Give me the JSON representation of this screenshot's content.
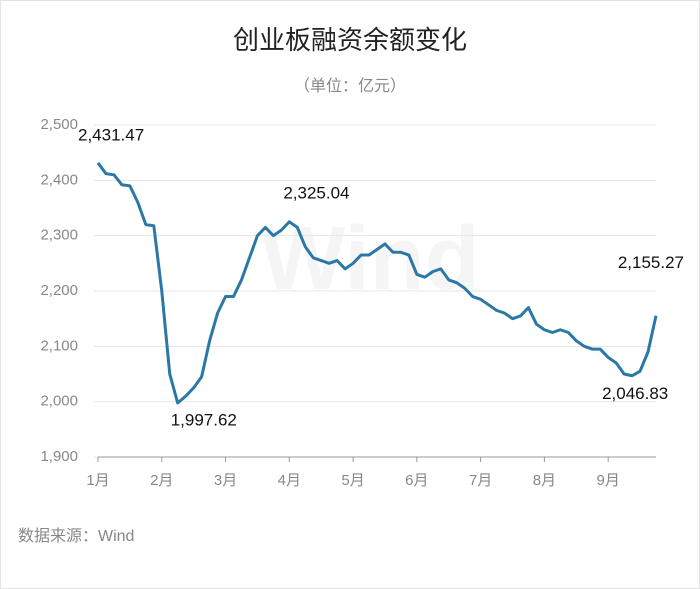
{
  "chart_data": {
    "type": "line",
    "title": "创业板融资余额变化",
    "subtitle": "（单位：亿元）",
    "source": "数据来源：Wind",
    "watermark": "Wind",
    "categories": [
      "1月",
      null,
      null,
      null,
      null,
      null,
      null,
      null,
      "2月",
      null,
      null,
      null,
      null,
      null,
      null,
      null,
      "3月",
      null,
      null,
      null,
      null,
      null,
      null,
      null,
      "4月",
      null,
      null,
      null,
      null,
      null,
      null,
      null,
      "5月",
      null,
      null,
      null,
      null,
      null,
      null,
      null,
      "6月",
      null,
      null,
      null,
      null,
      null,
      null,
      null,
      "7月",
      null,
      null,
      null,
      null,
      null,
      null,
      null,
      "8月",
      null,
      null,
      null,
      null,
      null,
      null,
      null,
      "9月",
      null,
      null,
      null,
      null,
      null,
      null
    ],
    "series": [
      {
        "name": "创业板融资余额",
        "color": "#2b78a6",
        "values": [
          2431.47,
          2412,
          2410,
          2392,
          2390,
          2360,
          2320,
          2318,
          2200,
          2050,
          1997.62,
          2010,
          2025,
          2045,
          2110,
          2160,
          2190,
          2190,
          2220,
          2260,
          2300,
          2315,
          2300,
          2310,
          2325.04,
          2315,
          2280,
          2260,
          2255,
          2250,
          2255,
          2240,
          2250,
          2265,
          2265,
          2275,
          2285,
          2270,
          2270,
          2265,
          2230,
          2225,
          2235,
          2240,
          2220,
          2215,
          2205,
          2190,
          2185,
          2175,
          2165,
          2160,
          2150,
          2155,
          2170,
          2140,
          2130,
          2125,
          2130,
          2125,
          2110,
          2100,
          2095,
          2095,
          2080,
          2070,
          2050,
          2046.83,
          2055,
          2090,
          2155.27
        ],
        "value_labels": [
          "2,431.47",
          null,
          null,
          null,
          null,
          null,
          null,
          null,
          null,
          null,
          "1,997.62",
          null,
          null,
          null,
          null,
          null,
          null,
          null,
          null,
          null,
          null,
          null,
          null,
          null,
          "2,325.04",
          null,
          null,
          null,
          null,
          null,
          null,
          null,
          null,
          null,
          null,
          null,
          null,
          null,
          null,
          null,
          null,
          null,
          null,
          null,
          null,
          null,
          null,
          null,
          null,
          null,
          null,
          null,
          null,
          null,
          null,
          null,
          null,
          null,
          null,
          null,
          null,
          null,
          null,
          null,
          null,
          null,
          null,
          "2,046.83",
          null,
          null,
          "2,155.27"
        ]
      }
    ],
    "ylim": [
      1900,
      2500
    ],
    "yticks": [
      {
        "value": 1900,
        "label": "1,900"
      },
      {
        "value": 2000,
        "label": "2,000"
      },
      {
        "value": 2100,
        "label": "2,100"
      },
      {
        "value": 2200,
        "label": "2,200"
      },
      {
        "value": 2300,
        "label": "2,300"
      },
      {
        "value": 2400,
        "label": "2,400"
      },
      {
        "value": 2500,
        "label": "2,500"
      }
    ],
    "grid": true
  }
}
